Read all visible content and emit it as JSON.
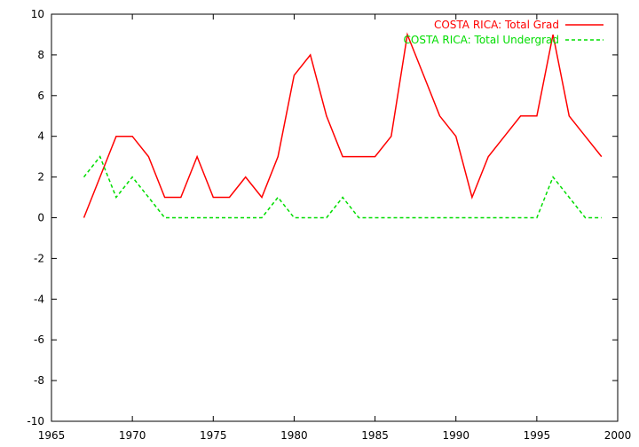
{
  "chart_data": {
    "type": "line",
    "title": "",
    "xlabel": "",
    "ylabel": "",
    "xlim": [
      1965,
      2000
    ],
    "ylim": [
      -10,
      10
    ],
    "xticks": [
      1965,
      1970,
      1975,
      1980,
      1985,
      1990,
      1995,
      2000
    ],
    "yticks": [
      -10,
      -8,
      -6,
      -4,
      -2,
      0,
      2,
      4,
      6,
      8,
      10
    ],
    "grid": false,
    "legend_position": "top-right",
    "series": [
      {
        "name": "COSTA RICA: Total Grad",
        "color": "#ff0000",
        "dash": "solid",
        "x": [
          1967,
          1968,
          1969,
          1970,
          1971,
          1972,
          1973,
          1974,
          1975,
          1976,
          1977,
          1978,
          1979,
          1980,
          1981,
          1982,
          1983,
          1984,
          1985,
          1986,
          1987,
          1988,
          1989,
          1990,
          1991,
          1992,
          1993,
          1994,
          1995,
          1996,
          1997,
          1998,
          1999
        ],
        "y": [
          0,
          2,
          4,
          4,
          3,
          1,
          1,
          3,
          1,
          1,
          2,
          1,
          3,
          7,
          8,
          5,
          3,
          3,
          3,
          4,
          9,
          7,
          5,
          4,
          1,
          3,
          4,
          5,
          5,
          9,
          5,
          4,
          3
        ]
      },
      {
        "name": "COSTA RICA: Total Undergrad",
        "color": "#00dd00",
        "dash": "dashed",
        "x": [
          1967,
          1968,
          1969,
          1970,
          1971,
          1972,
          1973,
          1974,
          1975,
          1976,
          1977,
          1978,
          1979,
          1980,
          1981,
          1982,
          1983,
          1984,
          1985,
          1986,
          1987,
          1988,
          1989,
          1990,
          1991,
          1992,
          1993,
          1994,
          1995,
          1996,
          1997,
          1998,
          1999
        ],
        "y": [
          2,
          3,
          1,
          2,
          1,
          0,
          0,
          0,
          0,
          0,
          0,
          0,
          1,
          0,
          0,
          0,
          1,
          0,
          0,
          0,
          0,
          0,
          0,
          0,
          0,
          0,
          0,
          0,
          0,
          2,
          1,
          0,
          0
        ]
      }
    ]
  }
}
